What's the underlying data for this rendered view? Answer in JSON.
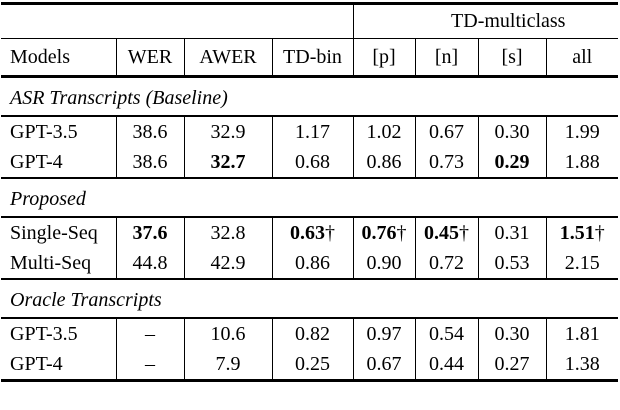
{
  "table": {
    "group_header": {
      "label": "TD-multiclass"
    },
    "columns": [
      "Models",
      "WER",
      "AWER",
      "TD-bin",
      "[p]",
      "[n]",
      "[s]",
      "all"
    ],
    "sections": [
      {
        "title": "ASR Transcripts (Baseline)",
        "rows": [
          {
            "model": "GPT-3.5",
            "cells": [
              {
                "v": "38.6"
              },
              {
                "v": "32.9"
              },
              {
                "v": "1.17"
              },
              {
                "v": "1.02"
              },
              {
                "v": "0.67"
              },
              {
                "v": "0.30"
              },
              {
                "v": "1.99"
              }
            ]
          },
          {
            "model": "GPT-4",
            "cells": [
              {
                "v": "38.6"
              },
              {
                "v": "32.7",
                "bold": true
              },
              {
                "v": "0.68"
              },
              {
                "v": "0.86"
              },
              {
                "v": "0.73"
              },
              {
                "v": "0.29",
                "bold": true
              },
              {
                "v": "1.88"
              }
            ]
          }
        ]
      },
      {
        "title": "Proposed",
        "rows": [
          {
            "model": "Single-Seq",
            "cells": [
              {
                "v": "37.6",
                "bold": true
              },
              {
                "v": "32.8"
              },
              {
                "v": "0.63",
                "bold": true,
                "suffix": "†"
              },
              {
                "v": "0.76",
                "bold": true,
                "suffix": "†"
              },
              {
                "v": "0.45",
                "bold": true,
                "suffix": "†"
              },
              {
                "v": "0.31"
              },
              {
                "v": "1.51",
                "bold": true,
                "suffix": "†"
              }
            ]
          },
          {
            "model": "Multi-Seq",
            "cells": [
              {
                "v": "44.8"
              },
              {
                "v": "42.9"
              },
              {
                "v": "0.86"
              },
              {
                "v": "0.90"
              },
              {
                "v": "0.72"
              },
              {
                "v": "0.53"
              },
              {
                "v": "2.15"
              }
            ]
          }
        ]
      },
      {
        "title": "Oracle Transcripts",
        "rows": [
          {
            "model": "GPT-3.5",
            "cells": [
              {
                "v": "–"
              },
              {
                "v": "10.6"
              },
              {
                "v": "0.82"
              },
              {
                "v": "0.97"
              },
              {
                "v": "0.54"
              },
              {
                "v": "0.30"
              },
              {
                "v": "1.81"
              }
            ]
          },
          {
            "model": "GPT-4",
            "cells": [
              {
                "v": "–"
              },
              {
                "v": "7.9"
              },
              {
                "v": "0.25"
              },
              {
                "v": "0.67"
              },
              {
                "v": "0.44"
              },
              {
                "v": "0.27"
              },
              {
                "v": "1.38"
              }
            ]
          }
        ]
      }
    ]
  }
}
